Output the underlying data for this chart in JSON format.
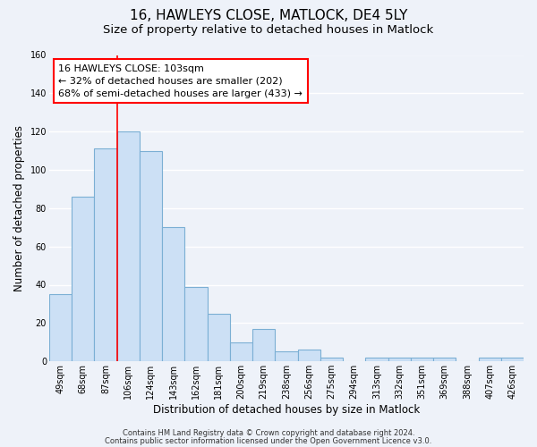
{
  "title": "16, HAWLEYS CLOSE, MATLOCK, DE4 5LY",
  "subtitle": "Size of property relative to detached houses in Matlock",
  "xlabel": "Distribution of detached houses by size in Matlock",
  "ylabel": "Number of detached properties",
  "bin_labels": [
    "49sqm",
    "68sqm",
    "87sqm",
    "106sqm",
    "124sqm",
    "143sqm",
    "162sqm",
    "181sqm",
    "200sqm",
    "219sqm",
    "238sqm",
    "256sqm",
    "275sqm",
    "294sqm",
    "313sqm",
    "332sqm",
    "351sqm",
    "369sqm",
    "388sqm",
    "407sqm",
    "426sqm"
  ],
  "bar_heights": [
    35,
    86,
    111,
    120,
    110,
    70,
    39,
    25,
    10,
    17,
    5,
    6,
    2,
    0,
    2,
    2,
    2,
    2,
    0,
    2,
    2
  ],
  "bar_color": "#cce0f5",
  "bar_edge_color": "#7bafd4",
  "ylim": [
    0,
    160
  ],
  "yticks": [
    0,
    20,
    40,
    60,
    80,
    100,
    120,
    140,
    160
  ],
  "vline_x_index": 3,
  "vline_color": "red",
  "annotation_text": "16 HAWLEYS CLOSE: 103sqm\n← 32% of detached houses are smaller (202)\n68% of semi-detached houses are larger (433) →",
  "annotation_box_color": "white",
  "annotation_box_edge_color": "red",
  "footer_line1": "Contains HM Land Registry data © Crown copyright and database right 2024.",
  "footer_line2": "Contains public sector information licensed under the Open Government Licence v3.0.",
  "background_color": "#eef2f9",
  "grid_color": "#ffffff",
  "title_fontsize": 11,
  "subtitle_fontsize": 9.5,
  "axis_label_fontsize": 8.5,
  "tick_fontsize": 7,
  "annotation_fontsize": 8,
  "footer_fontsize": 6
}
